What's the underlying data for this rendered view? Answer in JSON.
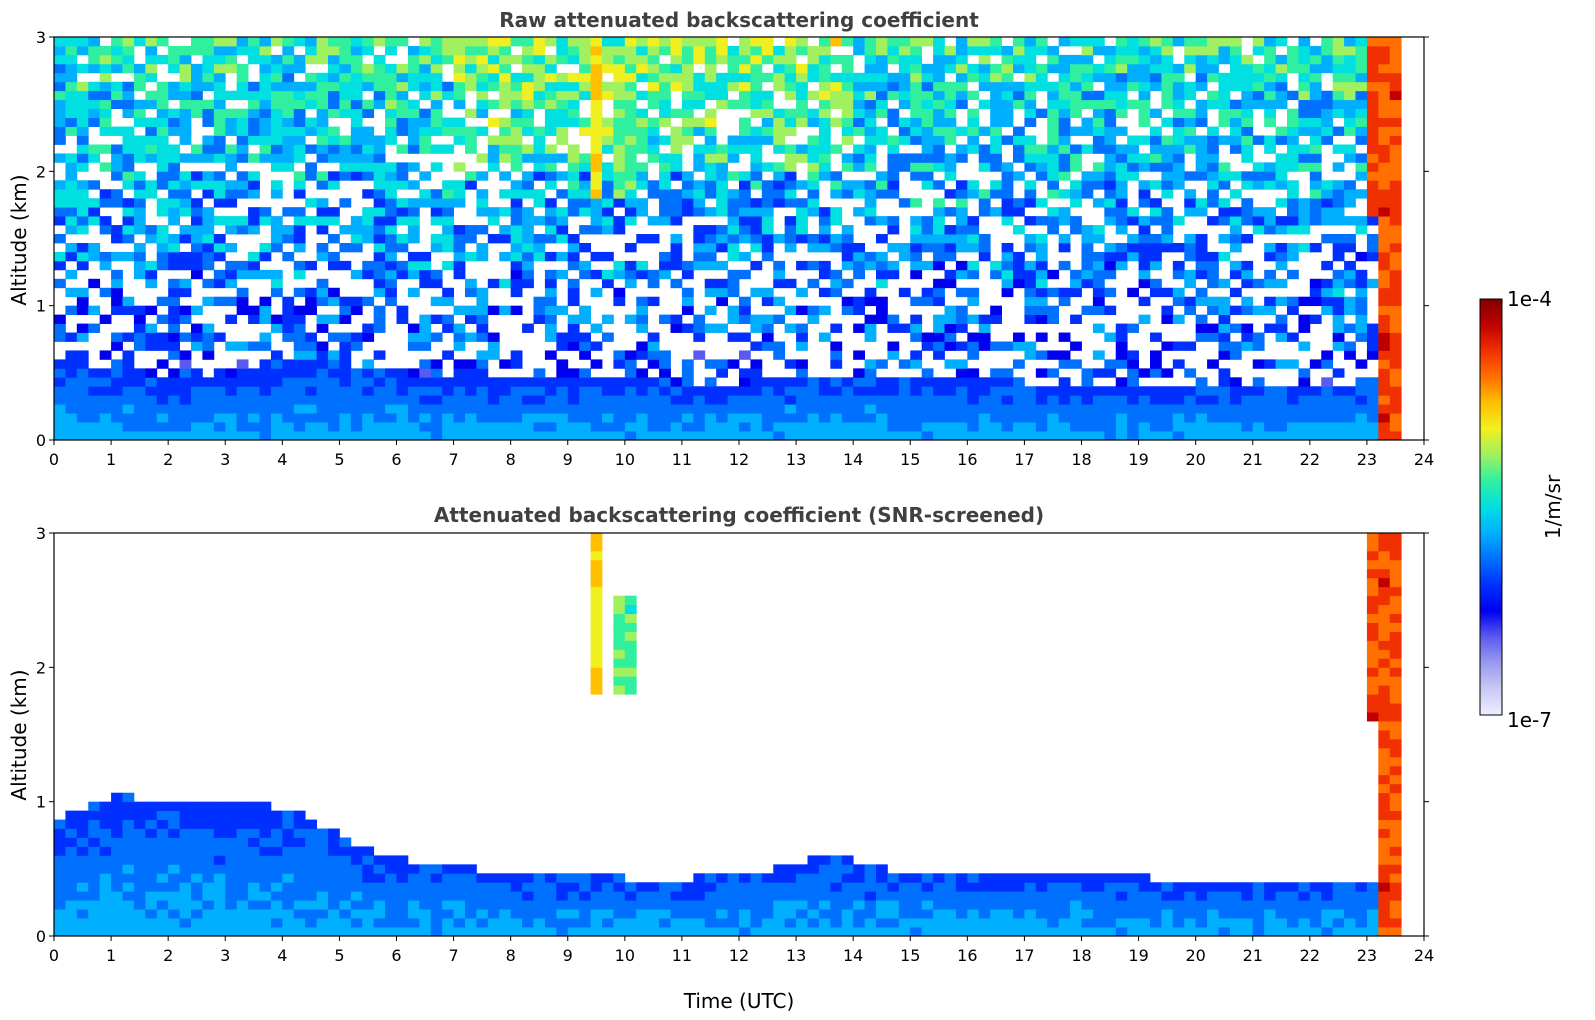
{
  "chart_data": [
    {
      "type": "heatmap",
      "title": "Raw attenuated backscattering coefficient",
      "xlabel": "",
      "ylabel": "Altitude (km)",
      "xlim": [
        0,
        24
      ],
      "ylim": [
        0,
        3
      ],
      "x_ticks": [
        0,
        1,
        2,
        3,
        4,
        5,
        6,
        7,
        8,
        9,
        10,
        11,
        12,
        13,
        14,
        15,
        16,
        17,
        18,
        19,
        20,
        21,
        22,
        23,
        24
      ],
      "y_ticks": [
        0,
        1,
        2,
        3
      ],
      "features": {
        "boundary_layer_top_km": [
          0.6,
          0.55,
          0.45,
          0.5,
          0.6,
          0.55,
          0.5,
          0.45,
          0.45,
          0.45,
          0.45,
          0.4,
          0.45,
          0.5,
          0.5,
          0.45,
          0.45,
          0.4,
          0.4,
          0.4,
          0.4,
          0.4,
          0.4,
          0.4
        ],
        "cloud_streaks": [
          {
            "x": 9.5,
            "y_from": 1.8,
            "y_to": 3.0,
            "level": "high"
          },
          {
            "x": 10.0,
            "y_from": 1.8,
            "y_to": 2.6,
            "level": "mid"
          },
          {
            "x": 23.1,
            "y_from": 1.7,
            "y_to": 3.0,
            "level": "very-high"
          },
          {
            "x": 23.4,
            "y_from": 0.0,
            "y_to": 3.0,
            "level": "very-high"
          }
        ]
      }
    },
    {
      "type": "heatmap",
      "title": "Attenuated backscattering coefficient (SNR-screened)",
      "xlabel": "Time (UTC)",
      "ylabel": "Altitude (km)",
      "xlim": [
        0,
        24
      ],
      "ylim": [
        0,
        3
      ],
      "x_ticks": [
        0,
        1,
        2,
        3,
        4,
        5,
        6,
        7,
        8,
        9,
        10,
        11,
        12,
        13,
        14,
        15,
        16,
        17,
        18,
        19,
        20,
        21,
        22,
        23,
        24
      ],
      "y_ticks": [
        0,
        1,
        2,
        3
      ],
      "features": {
        "boundary_layer_top_km": [
          0.85,
          1.05,
          1.0,
          1.0,
          0.95,
          0.7,
          0.55,
          0.5,
          0.45,
          0.5,
          0.4,
          0.45,
          0.5,
          0.6,
          0.5,
          0.5,
          0.45,
          0.5,
          0.45,
          0.4,
          0.4,
          0.4,
          0.4,
          0.45
        ],
        "cloud_streaks": [
          {
            "x": 9.5,
            "y_from": 1.8,
            "y_to": 3.0,
            "level": "high"
          },
          {
            "x": 10.0,
            "y_from": 1.8,
            "y_to": 2.5,
            "level": "mid"
          },
          {
            "x": 23.1,
            "y_from": 1.6,
            "y_to": 3.0,
            "level": "very-high"
          },
          {
            "x": 23.4,
            "y_from": 0.0,
            "y_to": 3.0,
            "level": "very-high"
          }
        ]
      }
    }
  ],
  "colorbar": {
    "label": "1/m/sr",
    "min_label": "1e-7",
    "max_label": "1e-4",
    "colors": [
      "#eeeeff",
      "#c8c8f4",
      "#9a9aee",
      "#5a5af0",
      "#0000f0",
      "#0030ff",
      "#0070ff",
      "#00b0ff",
      "#00e0e0",
      "#30f0a0",
      "#a0f060",
      "#f0f020",
      "#ffc000",
      "#ff7000",
      "#f03000",
      "#c00000",
      "#800000"
    ]
  }
}
